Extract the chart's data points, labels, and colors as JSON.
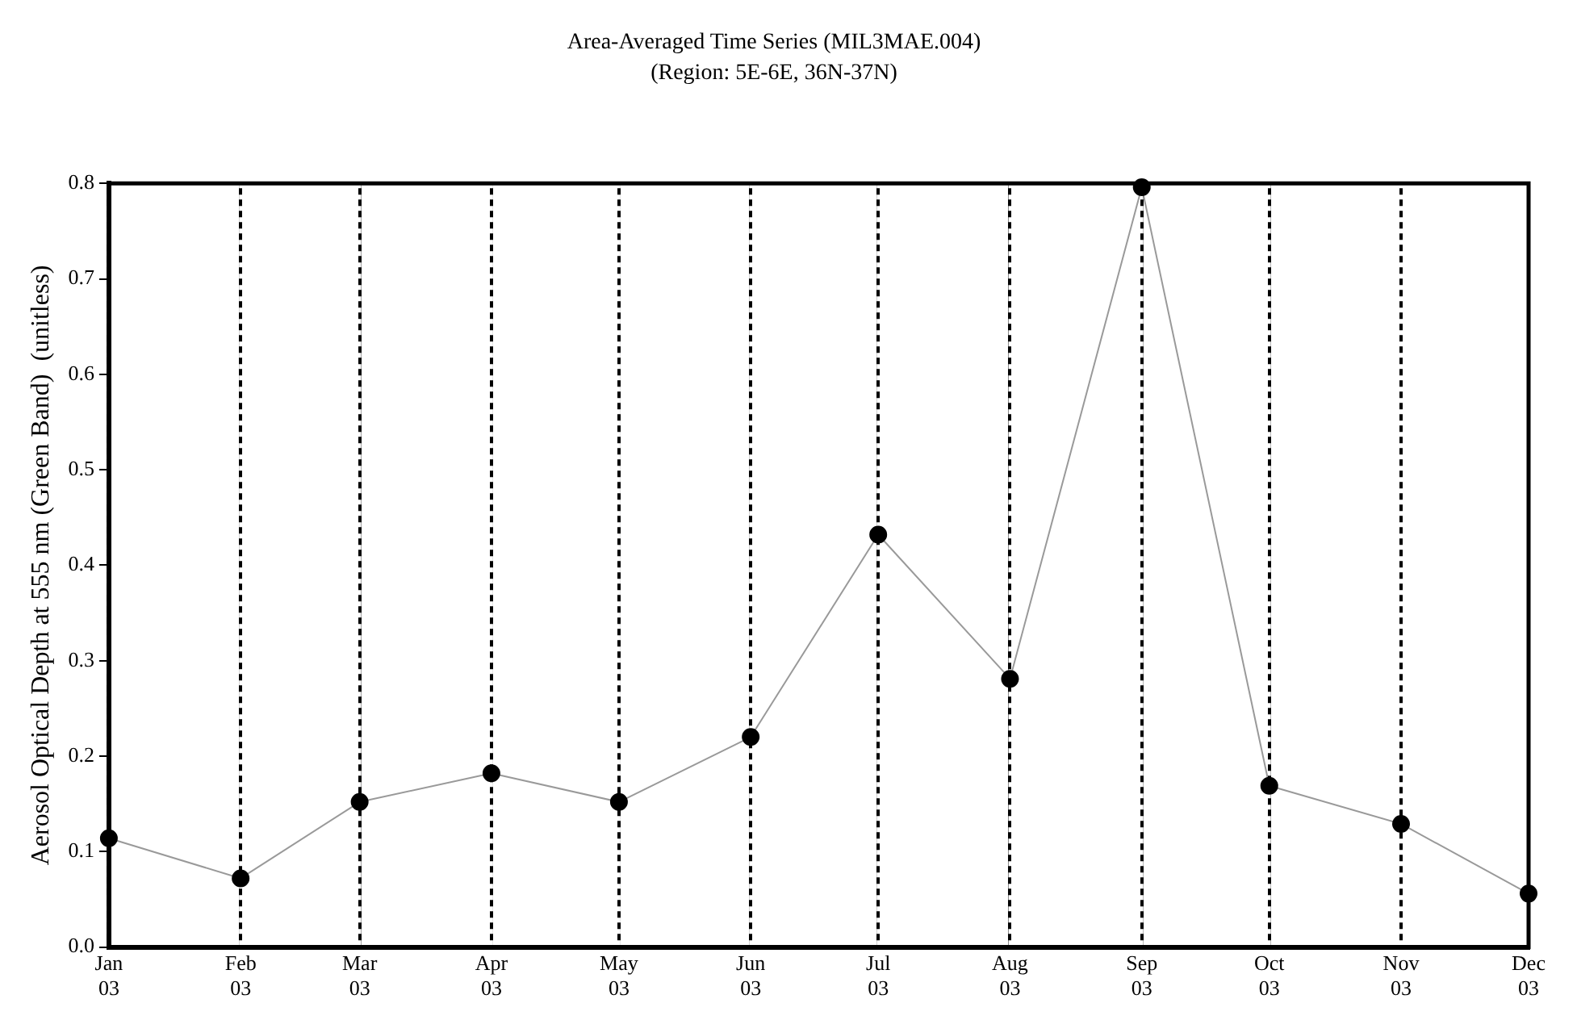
{
  "chart_data": {
    "type": "line",
    "title": "Area-Averaged Time Series (MIL3MAE.004)",
    "subtitle": "(Region: 5E-6E, 36N-37N)",
    "ylabel": "Aerosol Optical Depth at 555 nm (Green Band)  (unitless)",
    "x": [
      "2003-01",
      "2003-02",
      "2003-03",
      "2003-04",
      "2003-05",
      "2003-06",
      "2003-07",
      "2003-08",
      "2003-09",
      "2003-10",
      "2003-11",
      "2003-12"
    ],
    "series": [
      {
        "color": "#000000",
        "values": [
          0.114,
          0.072,
          0.152,
          0.182,
          0.152,
          0.22,
          0.432,
          0.281,
          0.796,
          0.169,
          0.129,
          0.056
        ]
      }
    ],
    "xlim": [
      "2003-01",
      "2003-12"
    ],
    "xticks": [
      {
        "value": "2003-01",
        "label": "Jan 03"
      },
      {
        "value": "2003-02",
        "label": "Feb 03"
      },
      {
        "value": "2003-03",
        "label": "Mar 03"
      },
      {
        "value": "2003-04",
        "label": "Apr 03"
      },
      {
        "value": "2003-05",
        "label": "May 03"
      },
      {
        "value": "2003-06",
        "label": "Jun 03"
      },
      {
        "value": "2003-07",
        "label": "Jul 03"
      },
      {
        "value": "2003-08",
        "label": "Aug 03"
      },
      {
        "value": "2003-09",
        "label": "Sep 03"
      },
      {
        "value": "2003-10",
        "label": "Oct 03"
      },
      {
        "value": "2003-11",
        "label": "Nov 03"
      },
      {
        "value": "2003-12",
        "label": "Dec 03"
      }
    ],
    "ylim": [
      0,
      0.8
    ],
    "yticks": [
      {
        "value": 0,
        "label": "0.0"
      },
      {
        "value": 0.1,
        "label": "0.1"
      },
      {
        "value": 0.2,
        "label": "0.2"
      },
      {
        "value": 0.3,
        "label": "0.3"
      },
      {
        "value": 0.4,
        "label": "0.4"
      },
      {
        "value": 0.5,
        "label": "0.5"
      },
      {
        "value": 0.6,
        "label": "0.6"
      },
      {
        "value": 0.7,
        "label": "0.7"
      },
      {
        "value": 0.8,
        "label": "0.8"
      }
    ],
    "grid": "x",
    "marker": "circle",
    "line_style": "solid",
    "legend": false
  }
}
